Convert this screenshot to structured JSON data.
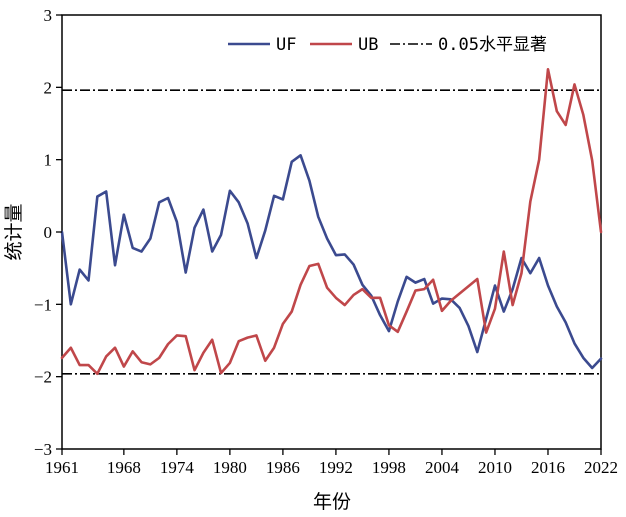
{
  "chart_data": {
    "type": "line",
    "xlabel": "年份",
    "ylabel": "统计量",
    "xlim": [
      1961,
      2022
    ],
    "ylim": [
      -3,
      3
    ],
    "xticks": [
      1961,
      1968,
      1974,
      1980,
      1986,
      1992,
      1998,
      2004,
      2010,
      2016,
      2022
    ],
    "yticks": [
      -3,
      -2,
      -1,
      0,
      1,
      2,
      3
    ],
    "ytick_labels": [
      "−3",
      "−2",
      "−1",
      "0",
      "1",
      "2",
      "3"
    ],
    "grid": false,
    "legend_position": "top-right",
    "x": [
      1961,
      1962,
      1963,
      1964,
      1965,
      1966,
      1967,
      1968,
      1969,
      1970,
      1971,
      1972,
      1973,
      1974,
      1975,
      1976,
      1977,
      1978,
      1979,
      1980,
      1981,
      1982,
      1983,
      1984,
      1985,
      1986,
      1987,
      1988,
      1989,
      1990,
      1991,
      1992,
      1993,
      1994,
      1995,
      1996,
      1997,
      1998,
      1999,
      2000,
      2001,
      2002,
      2003,
      2004,
      2005,
      2006,
      2007,
      2008,
      2009,
      2010,
      2011,
      2012,
      2013,
      2014,
      2015,
      2016,
      2017,
      2018,
      2019,
      2020,
      2021,
      2022
    ],
    "series": [
      {
        "name": "UF",
        "color": "#3b4a8f",
        "values": [
          0,
          -1.0,
          -0.52,
          -0.67,
          0.49,
          0.56,
          -0.46,
          0.24,
          -0.22,
          -0.27,
          -0.09,
          0.41,
          0.47,
          0.14,
          -0.56,
          0.06,
          0.31,
          -0.27,
          -0.04,
          0.57,
          0.41,
          0.12,
          -0.36,
          0.02,
          0.5,
          0.45,
          0.97,
          1.06,
          0.71,
          0.21,
          -0.09,
          -0.32,
          -0.31,
          -0.45,
          -0.73,
          -0.88,
          -1.15,
          -1.37,
          -0.96,
          -0.62,
          -0.7,
          -0.65,
          -0.99,
          -0.92,
          -0.93,
          -1.05,
          -1.3,
          -1.66,
          -1.2,
          -0.74,
          -1.1,
          -0.79,
          -0.36,
          -0.57,
          -0.36,
          -0.74,
          -1.03,
          -1.25,
          -1.54,
          -1.74,
          -1.88,
          -1.75
        ]
      },
      {
        "name": "UB",
        "color": "#c0474a",
        "values": [
          -1.74,
          -1.6,
          -1.84,
          -1.84,
          -1.96,
          -1.72,
          -1.6,
          -1.86,
          -1.65,
          -1.8,
          -1.83,
          -1.74,
          -1.55,
          -1.43,
          -1.44,
          -1.91,
          -1.67,
          -1.49,
          -1.95,
          -1.81,
          -1.51,
          -1.46,
          -1.43,
          -1.78,
          -1.6,
          -1.27,
          -1.1,
          -0.73,
          -0.47,
          -0.44,
          -0.77,
          -0.91,
          -1.01,
          -0.87,
          -0.79,
          -0.91,
          -0.91,
          -1.29,
          -1.38,
          -1.1,
          -0.81,
          -0.79,
          -0.66,
          -1.09,
          -0.95,
          -0.85,
          -0.75,
          -0.65,
          -1.39,
          -1.06,
          -0.27,
          -1.01,
          -0.57,
          0.42,
          1.0,
          2.25,
          1.67,
          1.48,
          2.04,
          1.62,
          0.99,
          0.0
        ]
      }
    ],
    "reference_lines": {
      "label": "0.05水平显著",
      "values": [
        1.96,
        -1.96
      ],
      "style": "dash-dot",
      "color": "#000000"
    }
  }
}
